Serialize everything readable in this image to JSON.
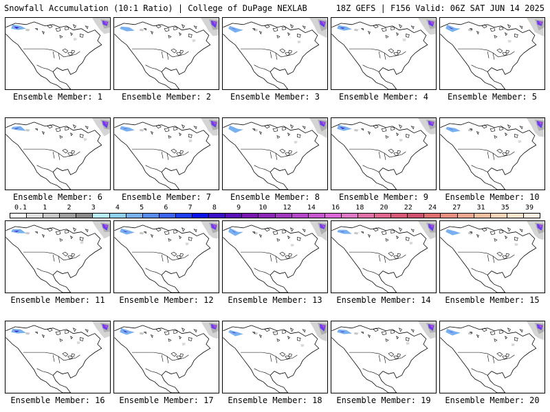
{
  "header": {
    "left_title": "Snowfall Accumulation (10:1 Ratio) | College of DuPage NEXLAB",
    "right_title": "18Z GEFS | F156 Valid: 06Z SAT JUN 14 2025"
  },
  "panels": [
    {
      "label": "Ensemble Member: 1"
    },
    {
      "label": "Ensemble Member: 2"
    },
    {
      "label": "Ensemble Member: 3"
    },
    {
      "label": "Ensemble Member: 4"
    },
    {
      "label": "Ensemble Member: 5"
    },
    {
      "label": "Ensemble Member: 6"
    },
    {
      "label": "Ensemble Member: 7"
    },
    {
      "label": "Ensemble Member: 8"
    },
    {
      "label": "Ensemble Member: 9"
    },
    {
      "label": "Ensemble Member: 10"
    },
    {
      "label": "Ensemble Member: 11"
    },
    {
      "label": "Ensemble Member: 12"
    },
    {
      "label": "Ensemble Member: 13"
    },
    {
      "label": "Ensemble Member: 14"
    },
    {
      "label": "Ensemble Member: 15"
    },
    {
      "label": "Ensemble Member: 16"
    },
    {
      "label": "Ensemble Member: 17"
    },
    {
      "label": "Ensemble Member: 18"
    },
    {
      "label": "Ensemble Member: 19"
    },
    {
      "label": "Ensemble Member: 20"
    }
  ],
  "colorbar": {
    "labels": [
      "0.1",
      "1",
      "2",
      "3",
      "4",
      "5",
      "6",
      "7",
      "8",
      "9",
      "10",
      "12",
      "14",
      "16",
      "18",
      "20",
      "22",
      "24",
      "27",
      "31",
      "35",
      "39"
    ],
    "colors": [
      "#ffffff",
      "#e0e0e0",
      "#c8c8c8",
      "#a0a0a0",
      "#8a8a8a",
      "#b8f0f8",
      "#90d0f0",
      "#78b0f0",
      "#5a8cf0",
      "#3c64f0",
      "#1e3cf0",
      "#0a14e8",
      "#3a10c8",
      "#5a10b8",
      "#7818b0",
      "#8c28b8",
      "#a038c0",
      "#b448c8",
      "#c858d0",
      "#dc68d8",
      "#e078c8",
      "#e070a8",
      "#e06890",
      "#d85878",
      "#d05070",
      "#e07070",
      "#e89080",
      "#f0a890",
      "#f4c0a0",
      "#f8d4b8",
      "#fce4cc",
      "#fff0e0"
    ]
  }
}
